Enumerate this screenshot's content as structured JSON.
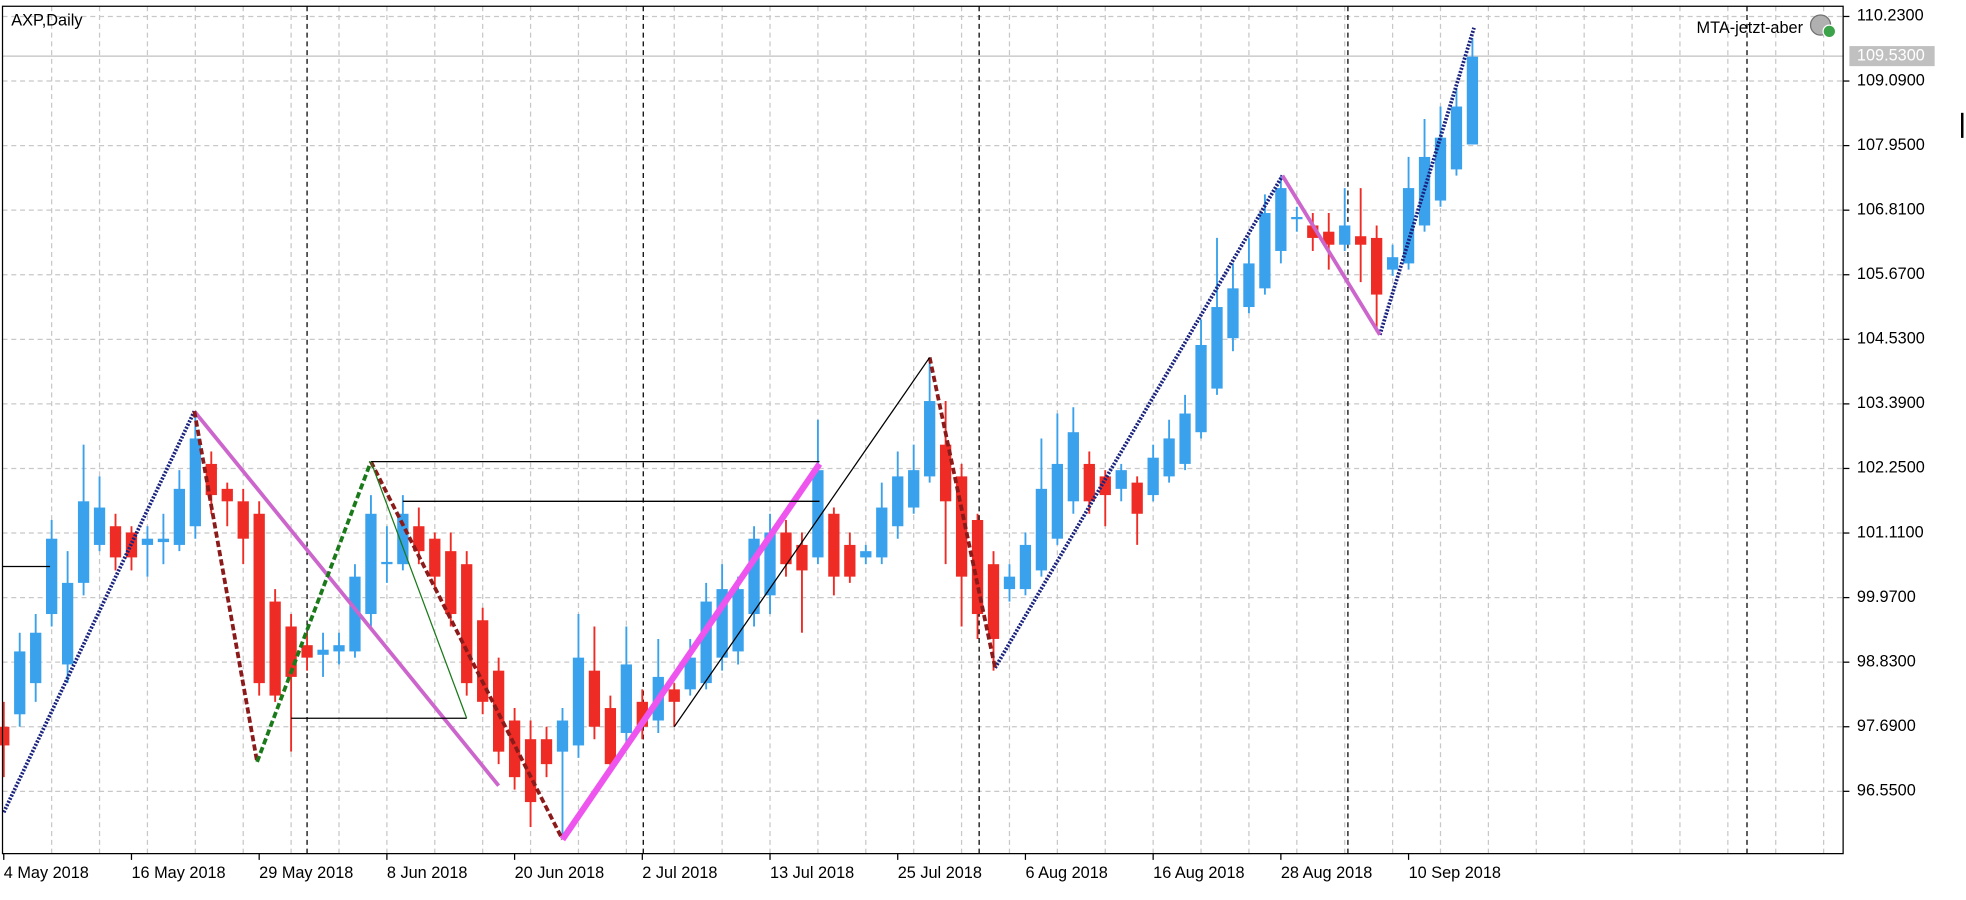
{
  "chart_data": {
    "type": "candlestick",
    "title": "AXP,Daily",
    "indicator_label": "MTA-jetzt-aber",
    "categories": [
      "4 May 2018",
      null,
      null,
      null,
      null,
      null,
      null,
      null,
      "16 May 2018",
      null,
      null,
      null,
      null,
      null,
      null,
      null,
      "29 May 2018",
      null,
      null,
      null,
      null,
      null,
      null,
      null,
      "8 Jun 2018",
      null,
      null,
      null,
      null,
      null,
      null,
      null,
      "20 Jun 2018",
      null,
      null,
      null,
      null,
      null,
      null,
      null,
      "2 Jul 2018",
      null,
      null,
      null,
      null,
      null,
      null,
      null,
      "13 Jul 2018",
      null,
      null,
      null,
      null,
      null,
      null,
      null,
      "25 Jul 2018",
      null,
      null,
      null,
      null,
      null,
      null,
      null,
      "6 Aug 2018",
      null,
      null,
      null,
      null,
      null,
      null,
      null,
      "16 Aug 2018",
      null,
      null,
      null,
      null,
      null,
      null,
      null,
      "28 Aug 2018",
      null,
      null,
      null,
      null,
      null,
      null,
      null,
      "10 Sep 2018",
      null,
      null,
      null,
      null
    ],
    "open": [
      97.69,
      97.91,
      98.46,
      99.68,
      98.79,
      100.23,
      100.9,
      101.23,
      101.12,
      100.9,
      100.95,
      100.9,
      101.23,
      102.33,
      101.89,
      101.67,
      101.45,
      99.9,
      99.46,
      99.13,
      98.96,
      99.02,
      99.02,
      99.68,
      100.56,
      100.56,
      101.23,
      101.01,
      100.79,
      100.56,
      99.57,
      98.68,
      97.8,
      97.47,
      97.47,
      97.25,
      97.36,
      98.68,
      98.02,
      97.58,
      98.13,
      97.8,
      98.35,
      98.35,
      98.46,
      98.91,
      99.02,
      99.68,
      100.01,
      101.12,
      100.9,
      100.68,
      101.45,
      100.9,
      100.68,
      100.68,
      101.23,
      101.56,
      102.11,
      102.67,
      102.11,
      101.34,
      100.56,
      100.12,
      100.12,
      100.45,
      101.01,
      101.67,
      102.33,
      102.11,
      101.89,
      102.0,
      101.78,
      102.11,
      102.33,
      102.89,
      103.66,
      104.55,
      105.1,
      105.43,
      106.09,
      106.65,
      106.54,
      106.43,
      106.2,
      106.35,
      106.32,
      105.76,
      105.87,
      106.54,
      106.98,
      107.53,
      107.97
    ],
    "high": [
      98.13,
      99.35,
      99.68,
      101.34,
      100.79,
      102.67,
      102.11,
      101.45,
      101.23,
      101.23,
      101.45,
      102.22,
      103.22,
      102.55,
      102.0,
      101.89,
      101.67,
      100.12,
      99.68,
      99.35,
      99.35,
      99.35,
      100.56,
      101.78,
      101.23,
      101.78,
      101.56,
      101.12,
      101.12,
      100.79,
      99.79,
      98.91,
      98.02,
      97.8,
      97.69,
      98.02,
      99.68,
      99.46,
      98.24,
      99.46,
      98.35,
      99.24,
      98.46,
      99.24,
      100.23,
      100.56,
      100.34,
      101.23,
      101.45,
      101.34,
      101.12,
      103.11,
      101.56,
      101.12,
      100.9,
      102.0,
      102.55,
      102.67,
      104.21,
      103.44,
      102.33,
      101.45,
      100.79,
      100.56,
      101.12,
      102.78,
      103.22,
      103.33,
      102.55,
      102.22,
      102.33,
      102.11,
      102.67,
      103.11,
      103.55,
      104.88,
      106.32,
      105.87,
      106.32,
      107.09,
      107.42,
      106.87,
      106.76,
      106.76,
      107.2,
      107.2,
      106.54,
      106.2,
      107.75,
      108.42,
      108.64,
      108.97,
      109.85
    ],
    "low": [
      96.8,
      97.69,
      98.13,
      99.46,
      98.46,
      100.01,
      100.79,
      100.45,
      100.45,
      100.34,
      100.56,
      100.79,
      101.01,
      101.45,
      101.23,
      100.56,
      98.24,
      98.13,
      97.25,
      98.68,
      98.57,
      98.79,
      98.91,
      99.46,
      100.23,
      100.45,
      100.56,
      100.12,
      99.46,
      98.24,
      97.91,
      97.03,
      96.58,
      95.92,
      96.8,
      95.7,
      97.14,
      97.47,
      96.91,
      97.36,
      97.47,
      97.58,
      97.69,
      98.24,
      98.35,
      98.68,
      98.79,
      99.46,
      99.68,
      100.34,
      99.35,
      100.56,
      100.01,
      100.23,
      100.56,
      100.56,
      101.01,
      101.45,
      102.0,
      100.56,
      99.46,
      99.24,
      98.68,
      99.9,
      100.01,
      100.34,
      100.9,
      101.45,
      101.45,
      101.23,
      101.67,
      100.9,
      101.67,
      102.0,
      102.22,
      102.78,
      103.55,
      104.32,
      104.99,
      105.32,
      105.87,
      106.43,
      106.09,
      105.76,
      106.09,
      105.54,
      104.66,
      105.65,
      105.76,
      106.43,
      106.87,
      107.42,
      107.97
    ],
    "close": [
      97.36,
      99.02,
      99.35,
      101.01,
      100.23,
      101.67,
      101.56,
      100.68,
      100.68,
      101.01,
      101.01,
      101.89,
      102.78,
      101.78,
      101.67,
      101.01,
      98.46,
      98.24,
      98.57,
      98.91,
      99.05,
      99.13,
      100.34,
      101.45,
      100.6,
      101.45,
      100.79,
      100.34,
      99.68,
      98.46,
      98.13,
      97.25,
      96.8,
      96.36,
      97.03,
      97.8,
      98.91,
      97.69,
      97.03,
      98.79,
      97.69,
      98.57,
      98.13,
      98.91,
      99.9,
      100.12,
      100.12,
      101.01,
      101.12,
      100.56,
      100.45,
      102.22,
      100.34,
      100.34,
      100.79,
      101.56,
      102.11,
      102.22,
      103.44,
      101.67,
      100.34,
      99.68,
      99.24,
      100.34,
      100.9,
      101.89,
      102.33,
      102.89,
      101.67,
      101.78,
      102.22,
      101.45,
      102.44,
      102.78,
      103.22,
      104.43,
      105.1,
      105.43,
      105.87,
      106.76,
      107.2,
      106.69,
      106.32,
      106.2,
      106.54,
      106.2,
      105.32,
      105.98,
      107.2,
      107.75,
      108.09,
      108.64,
      109.52
    ],
    "up_color": "#3aa2ec",
    "down_color": "#ee2b24",
    "ylim": [
      95.45,
      110.41
    ],
    "yticks": [
      {
        "value": 110.23,
        "label": "110.2300"
      },
      {
        "value": 109.09,
        "label": "109.0900"
      },
      {
        "value": 107.95,
        "label": "107.9500"
      },
      {
        "value": 106.81,
        "label": "106.8100"
      },
      {
        "value": 105.67,
        "label": "105.6700"
      },
      {
        "value": 104.53,
        "label": "104.5300"
      },
      {
        "value": 103.39,
        "label": "103.3900"
      },
      {
        "value": 102.25,
        "label": "102.2500"
      },
      {
        "value": 101.11,
        "label": "101.1100"
      },
      {
        "value": 99.97,
        "label": "99.9700"
      },
      {
        "value": 98.83,
        "label": "98.8300"
      },
      {
        "value": 97.69,
        "label": "97.6900"
      },
      {
        "value": 96.55,
        "label": "96.5500"
      }
    ],
    "grid": true,
    "current_price": {
      "value": 109.53,
      "label": "109.5300"
    },
    "overlays": [
      {
        "color": "#1a237e",
        "width": 3,
        "dash": "dotted",
        "x": [
          0,
          11.94
        ],
        "y": [
          96.18,
          103.26
        ]
      },
      {
        "color": "#1a237e",
        "width": 3,
        "dash": "dotted",
        "x": [
          62.1,
          80.1
        ],
        "y": [
          98.73,
          107.42
        ]
      },
      {
        "color": "#1a237e",
        "width": 3,
        "dash": "dotted",
        "x": [
          86.2,
          92.1
        ],
        "y": [
          104.61,
          110.03
        ]
      },
      {
        "color": "#cc66cc",
        "width": 3,
        "dash": "solid",
        "x": [
          11.94,
          31
        ],
        "y": [
          103.26,
          96.65
        ]
      },
      {
        "color": "#cc66cc",
        "width": 3,
        "dash": "solid",
        "x": [
          80.1,
          86.2
        ],
        "y": [
          107.42,
          104.61
        ]
      },
      {
        "color": "#8b1a1a",
        "width": 3,
        "dash": "dashed",
        "x": [
          11.94,
          15.87
        ],
        "y": [
          103.26,
          97.07
        ]
      },
      {
        "color": "#1a7a1a",
        "width": 3,
        "dash": "dashed",
        "x": [
          15.87,
          23
        ],
        "y": [
          97.07,
          102.37
        ]
      },
      {
        "color": "#8b1a1a",
        "width": 3,
        "dash": "dashed",
        "x": [
          23,
          35
        ],
        "y": [
          102.37,
          95.7
        ]
      },
      {
        "color": "#8b1a1a",
        "width": 3,
        "dash": "dashed",
        "x": [
          58,
          62.1
        ],
        "y": [
          104.21,
          98.73
        ]
      },
      {
        "color": "#ee55ee",
        "width": 5,
        "dash": "solid",
        "x": [
          35,
          51.1
        ],
        "y": [
          95.7,
          102.33
        ]
      },
      {
        "color": "#000000",
        "width": 1,
        "dash": "solid",
        "x": [
          42,
          58
        ],
        "y": [
          97.69,
          104.21
        ]
      },
      {
        "color": "#000000",
        "width": 1,
        "dash": "solid",
        "x": [
          23,
          51.1
        ],
        "y": [
          102.37,
          102.37
        ]
      },
      {
        "color": "#000000",
        "width": 1,
        "dash": "solid",
        "x": [
          25,
          51.1
        ],
        "y": [
          101.67,
          101.67
        ]
      },
      {
        "color": "#000000",
        "width": 1,
        "dash": "solid",
        "x": [
          18,
          29
        ],
        "y": [
          97.84,
          97.84
        ]
      },
      {
        "color": "#000000",
        "width": 1,
        "dash": "solid",
        "x": [
          -0.1,
          2.9
        ],
        "y": [
          100.52,
          100.52
        ]
      },
      {
        "color": "#1a7a1a",
        "width": 1,
        "dash": "solid",
        "x": [
          23,
          29
        ],
        "y": [
          102.37,
          97.84
        ]
      }
    ]
  }
}
